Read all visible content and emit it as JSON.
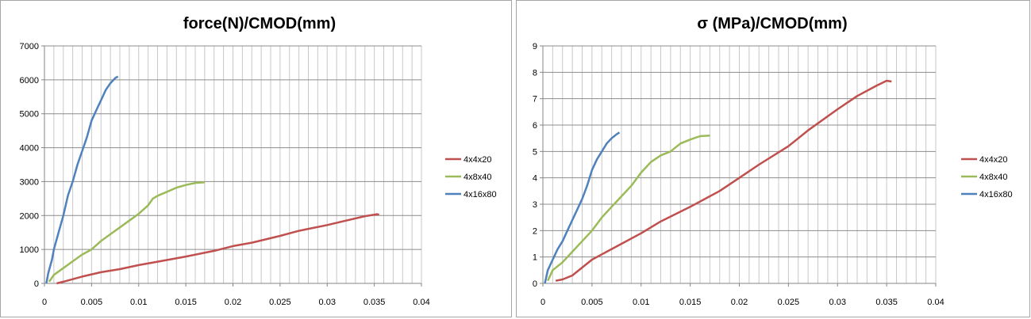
{
  "chart_data": [
    {
      "type": "line",
      "title": "force(N)/CMOD(mm)",
      "xlabel": "",
      "ylabel": "",
      "xlim": [
        0,
        0.04
      ],
      "ylim": [
        0,
        7000
      ],
      "x_ticks": [
        "0",
        "0.005",
        "0.01",
        "0.015",
        "0.02",
        "0.025",
        "0.03",
        "0.035",
        "0.04"
      ],
      "y_ticks": [
        "0",
        "1000",
        "2000",
        "3000",
        "4000",
        "5000",
        "6000",
        "7000"
      ],
      "grid": true,
      "legend_position": "right",
      "series": [
        {
          "name": "4x4x20",
          "color": "#c0504d",
          "points": [
            [
              0.0013,
              0
            ],
            [
              0.002,
              50
            ],
            [
              0.004,
              200
            ],
            [
              0.006,
              330
            ],
            [
              0.008,
              420
            ],
            [
              0.01,
              540
            ],
            [
              0.012,
              640
            ],
            [
              0.015,
              790
            ],
            [
              0.018,
              960
            ],
            [
              0.02,
              1100
            ],
            [
              0.022,
              1200
            ],
            [
              0.025,
              1400
            ],
            [
              0.027,
              1550
            ],
            [
              0.03,
              1720
            ],
            [
              0.032,
              1850
            ],
            [
              0.034,
              1980
            ],
            [
              0.0353,
              2040
            ],
            [
              0.0355,
              2020
            ]
          ]
        },
        {
          "name": "4x8x40",
          "color": "#9bbb59",
          "points": [
            [
              0.0005,
              50
            ],
            [
              0.001,
              250
            ],
            [
              0.002,
              450
            ],
            [
              0.003,
              650
            ],
            [
              0.004,
              850
            ],
            [
              0.005,
              1000
            ],
            [
              0.006,
              1250
            ],
            [
              0.007,
              1450
            ],
            [
              0.008,
              1650
            ],
            [
              0.009,
              1850
            ],
            [
              0.01,
              2050
            ],
            [
              0.011,
              2300
            ],
            [
              0.0115,
              2500
            ],
            [
              0.012,
              2580
            ],
            [
              0.013,
              2700
            ],
            [
              0.014,
              2820
            ],
            [
              0.015,
              2900
            ],
            [
              0.016,
              2960
            ],
            [
              0.017,
              2980
            ]
          ]
        },
        {
          "name": "4x16x80",
          "color": "#4f81bd",
          "points": [
            [
              0.0002,
              0
            ],
            [
              0.0004,
              300
            ],
            [
              0.0008,
              700
            ],
            [
              0.001,
              1000
            ],
            [
              0.0015,
              1500
            ],
            [
              0.002,
              2000
            ],
            [
              0.0025,
              2600
            ],
            [
              0.003,
              3000
            ],
            [
              0.0035,
              3500
            ],
            [
              0.004,
              3900
            ],
            [
              0.0045,
              4300
            ],
            [
              0.005,
              4800
            ],
            [
              0.0055,
              5100
            ],
            [
              0.006,
              5400
            ],
            [
              0.0065,
              5700
            ],
            [
              0.007,
              5900
            ],
            [
              0.0075,
              6050
            ],
            [
              0.0078,
              6100
            ]
          ]
        }
      ]
    },
    {
      "type": "line",
      "title": "σ (MPa)/CMOD(mm)",
      "xlabel": "",
      "ylabel": "",
      "xlim": [
        0,
        0.04
      ],
      "ylim": [
        0,
        9
      ],
      "x_ticks": [
        "0",
        "0.005",
        "0.01",
        "0.015",
        "0.02",
        "0.025",
        "0.03",
        "0.035",
        "0.04"
      ],
      "y_ticks": [
        "0",
        "1",
        "2",
        "3",
        "4",
        "5",
        "6",
        "7",
        "8",
        "9"
      ],
      "grid": true,
      "legend_position": "right",
      "series": [
        {
          "name": "4x4x20",
          "color": "#c0504d",
          "points": [
            [
              0.0013,
              0.1
            ],
            [
              0.002,
              0.15
            ],
            [
              0.003,
              0.3
            ],
            [
              0.004,
              0.6
            ],
            [
              0.005,
              0.9
            ],
            [
              0.006,
              1.1
            ],
            [
              0.008,
              1.5
            ],
            [
              0.01,
              1.9
            ],
            [
              0.012,
              2.35
            ],
            [
              0.015,
              2.9
            ],
            [
              0.018,
              3.5
            ],
            [
              0.02,
              4.0
            ],
            [
              0.022,
              4.5
            ],
            [
              0.025,
              5.2
            ],
            [
              0.027,
              5.8
            ],
            [
              0.03,
              6.6
            ],
            [
              0.032,
              7.1
            ],
            [
              0.034,
              7.5
            ],
            [
              0.035,
              7.68
            ],
            [
              0.0355,
              7.65
            ]
          ]
        },
        {
          "name": "4x8x40",
          "color": "#9bbb59",
          "points": [
            [
              0.0005,
              0.1
            ],
            [
              0.001,
              0.5
            ],
            [
              0.002,
              0.8
            ],
            [
              0.003,
              1.2
            ],
            [
              0.004,
              1.6
            ],
            [
              0.005,
              2.0
            ],
            [
              0.006,
              2.5
            ],
            [
              0.007,
              2.9
            ],
            [
              0.008,
              3.3
            ],
            [
              0.009,
              3.7
            ],
            [
              0.01,
              4.2
            ],
            [
              0.011,
              4.6
            ],
            [
              0.012,
              4.85
            ],
            [
              0.013,
              5.0
            ],
            [
              0.014,
              5.3
            ],
            [
              0.015,
              5.45
            ],
            [
              0.016,
              5.58
            ],
            [
              0.017,
              5.6
            ]
          ]
        },
        {
          "name": "4x16x80",
          "color": "#4f81bd",
          "points": [
            [
              0.0002,
              0
            ],
            [
              0.0005,
              0.5
            ],
            [
              0.001,
              0.9
            ],
            [
              0.0015,
              1.3
            ],
            [
              0.002,
              1.6
            ],
            [
              0.0025,
              2.0
            ],
            [
              0.003,
              2.4
            ],
            [
              0.0035,
              2.8
            ],
            [
              0.004,
              3.2
            ],
            [
              0.0045,
              3.7
            ],
            [
              0.005,
              4.3
            ],
            [
              0.0055,
              4.7
            ],
            [
              0.006,
              5.0
            ],
            [
              0.0065,
              5.3
            ],
            [
              0.007,
              5.5
            ],
            [
              0.0075,
              5.65
            ],
            [
              0.0078,
              5.72
            ]
          ]
        }
      ]
    }
  ]
}
